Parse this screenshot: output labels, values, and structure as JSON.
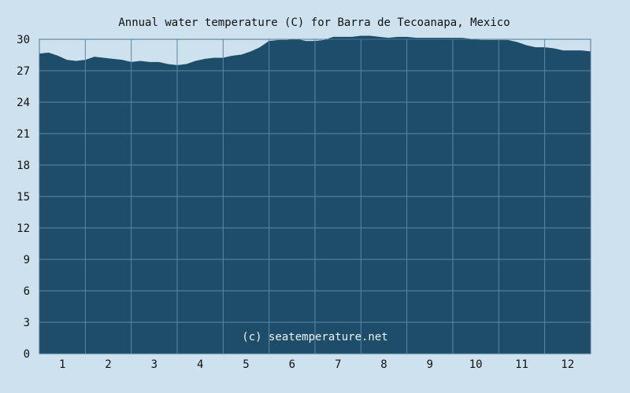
{
  "chart_data": {
    "type": "area",
    "title": "Annual water temperature (C) for Barra de Tecoanapa, Mexico",
    "xlabel": "",
    "ylabel": "",
    "watermark": "(c) seatemperature.net",
    "xlim": [
      1,
      13
    ],
    "ylim": [
      0,
      30
    ],
    "grid": true,
    "x_ticks": [
      "1",
      "2",
      "3",
      "4",
      "5",
      "6",
      "7",
      "8",
      "9",
      "10",
      "11",
      "12"
    ],
    "y_ticks": [
      "0",
      "3",
      "6",
      "9",
      "12",
      "15",
      "18",
      "21",
      "24",
      "27",
      "30"
    ],
    "x": [
      1.0,
      1.2,
      1.4,
      1.6,
      1.8,
      2.0,
      2.2,
      2.4,
      2.6,
      2.8,
      3.0,
      3.2,
      3.4,
      3.6,
      3.8,
      4.0,
      4.2,
      4.4,
      4.6,
      4.8,
      5.0,
      5.2,
      5.4,
      5.6,
      5.8,
      6.0,
      6.2,
      6.4,
      6.6,
      6.8,
      7.0,
      7.2,
      7.4,
      7.6,
      7.8,
      8.0,
      8.2,
      8.4,
      8.6,
      8.8,
      9.0,
      9.2,
      9.4,
      9.6,
      9.8,
      10.0,
      10.2,
      10.4,
      10.6,
      10.8,
      11.0,
      11.2,
      11.4,
      11.6,
      11.8,
      12.0,
      12.2,
      12.4,
      12.6,
      12.8,
      13.0
    ],
    "values": [
      28.6,
      28.7,
      28.4,
      28.0,
      27.9,
      28.0,
      28.3,
      28.2,
      28.1,
      28.0,
      27.8,
      27.9,
      27.8,
      27.8,
      27.6,
      27.5,
      27.6,
      27.9,
      28.1,
      28.2,
      28.2,
      28.4,
      28.5,
      28.8,
      29.2,
      29.8,
      29.9,
      29.9,
      30.0,
      29.8,
      29.8,
      29.9,
      30.2,
      30.2,
      30.2,
      30.3,
      30.3,
      30.2,
      30.1,
      30.2,
      30.2,
      30.1,
      30.1,
      30.1,
      30.1,
      30.1,
      30.1,
      30.0,
      29.9,
      29.9,
      29.9,
      29.9,
      29.7,
      29.4,
      29.2,
      29.2,
      29.1,
      28.9,
      28.9,
      28.9,
      28.8
    ],
    "colors": {
      "background": "#cde2ee",
      "fill": "#1e4d69",
      "grid": "#5c87a2",
      "frame": "#4b7894"
    }
  }
}
